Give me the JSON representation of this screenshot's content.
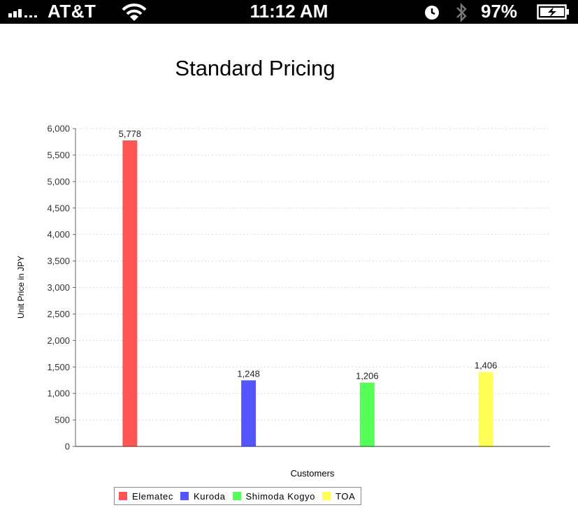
{
  "status_bar": {
    "carrier": "AT&T",
    "time": "11:12 AM",
    "battery_percent": "97%",
    "icons": [
      "signal-icon",
      "wifi-icon",
      "clock-icon",
      "bluetooth-icon",
      "battery-charging-icon"
    ]
  },
  "chart_data": {
    "type": "bar",
    "title": "Standard Pricing",
    "xlabel": "Customers",
    "ylabel": "Unit Price in JPY",
    "categories": [
      "Elematec",
      "Kuroda",
      "Shimoda Kogyo",
      "TOA"
    ],
    "values": [
      5778,
      1248,
      1206,
      1406
    ],
    "value_labels": [
      "5,778",
      "1,248",
      "1,206",
      "1,406"
    ],
    "colors": [
      "#ff5555",
      "#5555ff",
      "#55ff55",
      "#ffff55"
    ],
    "ylim": [
      0,
      6000
    ],
    "yticks": [
      0,
      500,
      1000,
      1500,
      2000,
      2500,
      3000,
      3500,
      4000,
      4500,
      5000,
      5500,
      6000
    ],
    "ytick_labels": [
      "0",
      "500",
      "1,000",
      "1,500",
      "2,000",
      "2,500",
      "3,000",
      "3,500",
      "4,000",
      "4,500",
      "5,000",
      "5,500",
      "6,000"
    ],
    "grid": true,
    "legend_position": "bottom"
  }
}
